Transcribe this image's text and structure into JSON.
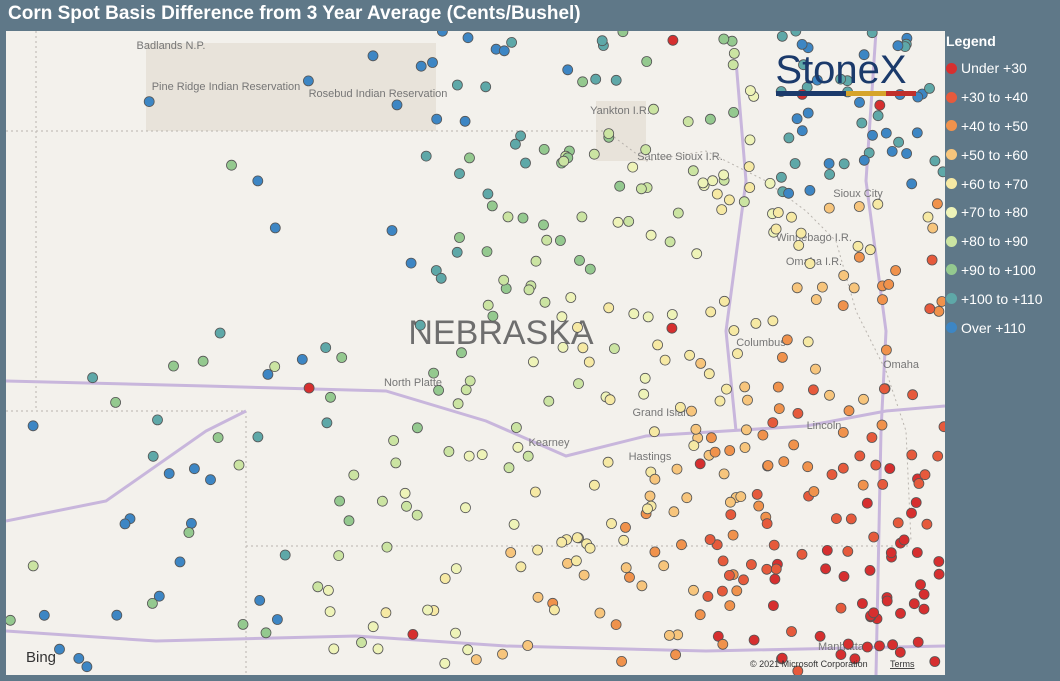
{
  "header": {
    "title": "Corn Spot Basis Difference from 3 Year Average (Cents/Bushel)"
  },
  "legend": {
    "title": "Legend",
    "items": [
      {
        "label": "Under +30",
        "color": "#d62f2f"
      },
      {
        "label": "+30 to +40",
        "color": "#e65a3c"
      },
      {
        "label": "+40 to +50",
        "color": "#f0924c"
      },
      {
        "label": "+50 to +60",
        "color": "#f7c57c"
      },
      {
        "label": "+60 to +70",
        "color": "#f6e9a4"
      },
      {
        "label": "+70 to +80",
        "color": "#eef3b8"
      },
      {
        "label": "+80 to +90",
        "color": "#cbe4a2"
      },
      {
        "label": "+90 to +100",
        "color": "#94c98f"
      },
      {
        "label": "+100 to +110",
        "color": "#5ea8a8"
      },
      {
        "label": "Over +110",
        "color": "#3d86c4"
      }
    ]
  },
  "logo": "StoneX",
  "map": {
    "state": "NEBRASKA",
    "places": [
      "Badlands N.P.",
      "Pine Ridge Indian Reservation",
      "Rosebud Indian Reservation",
      "Yankton I.R.",
      "Santee Sioux I.R.",
      "Winnebago I.R.",
      "Omaha I.R.",
      "Sioux City",
      "Columbus",
      "Omaha",
      "North Platte",
      "Grand Island",
      "Kearney",
      "Hastings",
      "Lincoln",
      "Manhattan"
    ],
    "attribution": {
      "provider": "Bing",
      "copyright": "© 2021 Microsoft Corporation",
      "terms": "Terms"
    }
  }
}
